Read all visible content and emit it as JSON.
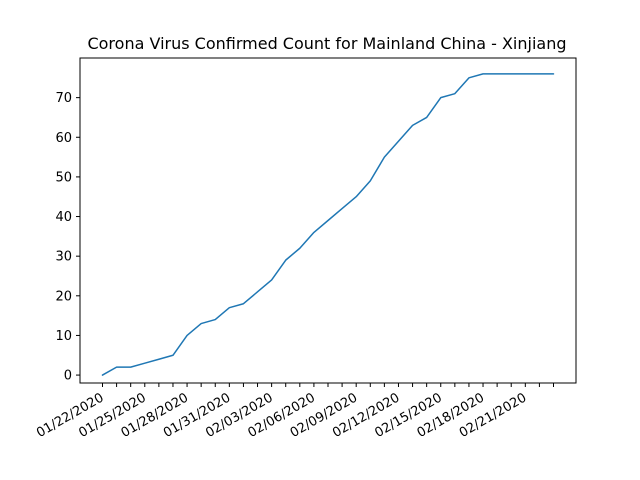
{
  "chart_data": {
    "type": "line",
    "title": "Corona Virus Confirmed Count for Mainland China - Xinjiang",
    "xlabel": "",
    "ylabel": "",
    "x": [
      "01/22/2020",
      "01/23/2020",
      "01/24/2020",
      "01/25/2020",
      "01/26/2020",
      "01/27/2020",
      "01/28/2020",
      "01/29/2020",
      "01/30/2020",
      "01/31/2020",
      "02/01/2020",
      "02/02/2020",
      "02/03/2020",
      "02/04/2020",
      "02/05/2020",
      "02/06/2020",
      "02/07/2020",
      "02/08/2020",
      "02/09/2020",
      "02/10/2020",
      "02/11/2020",
      "02/12/2020",
      "02/13/2020",
      "02/14/2020",
      "02/15/2020",
      "02/16/2020",
      "02/17/2020",
      "02/18/2020",
      "02/19/2020",
      "02/20/2020",
      "02/21/2020",
      "02/22/2020",
      "02/23/2020"
    ],
    "x_tick_labels": [
      "01/22/2020",
      "01/25/2020",
      "01/28/2020",
      "01/31/2020",
      "02/03/2020",
      "02/06/2020",
      "02/09/2020",
      "02/12/2020",
      "02/15/2020",
      "02/18/2020",
      "02/21/2020"
    ],
    "series": [
      {
        "values": [
          0,
          2,
          2,
          3,
          4,
          5,
          10,
          13,
          14,
          17,
          18,
          21,
          24,
          29,
          32,
          36,
          39,
          42,
          45,
          49,
          55,
          59,
          63,
          65,
          70,
          71,
          75,
          76,
          76,
          76,
          76,
          76,
          76
        ],
        "color": "#1f77b4"
      }
    ],
    "ylim": [
      -2,
      80
    ],
    "yticks": [
      0,
      10,
      20,
      30,
      40,
      50,
      60,
      70
    ],
    "grid": false,
    "legend": "none"
  }
}
